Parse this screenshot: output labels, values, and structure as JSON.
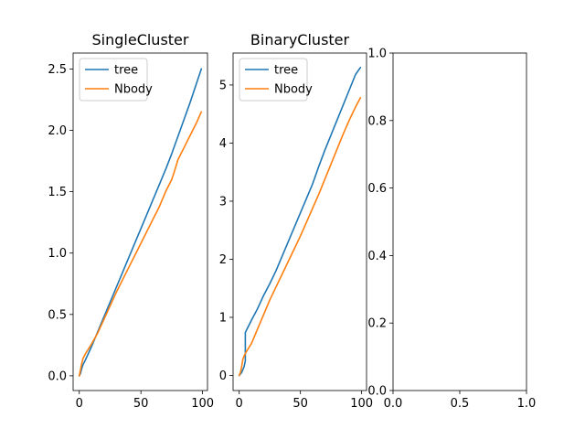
{
  "chart_data": [
    {
      "type": "line",
      "title": "SingleCluster",
      "xlabel": "",
      "ylabel": "",
      "xlim": [
        -5,
        104
      ],
      "ylim": [
        -0.12,
        2.63
      ],
      "xticks": [
        0,
        50,
        100
      ],
      "xtick_labels": [
        "0",
        "50",
        "100"
      ],
      "yticks": [
        0,
        0.5,
        1,
        1.5,
        2,
        2.5
      ],
      "ytick_labels": [
        "0.0",
        "0.5",
        "1.0",
        "1.5",
        "2.0",
        "2.5"
      ],
      "legend": "upper-left",
      "grid": false,
      "series": [
        {
          "name": "tree",
          "color": "#1f77b4",
          "x": [
            0,
            1,
            2,
            3,
            5,
            10,
            15,
            20,
            25,
            30,
            35,
            40,
            45,
            50,
            55,
            60,
            65,
            70,
            75,
            80,
            85,
            90,
            95,
            99
          ],
          "y": [
            0.0,
            0.02,
            0.06,
            0.09,
            0.13,
            0.24,
            0.36,
            0.48,
            0.6,
            0.72,
            0.84,
            0.96,
            1.08,
            1.2,
            1.32,
            1.44,
            1.56,
            1.68,
            1.81,
            1.95,
            2.09,
            2.23,
            2.38,
            2.5
          ]
        },
        {
          "name": "Nbody",
          "color": "#ff7f0e",
          "x": [
            0,
            1,
            2,
            3,
            5,
            10,
            15,
            20,
            25,
            30,
            35,
            40,
            45,
            50,
            55,
            60,
            65,
            70,
            75,
            77,
            80,
            85,
            90,
            95,
            99
          ],
          "y": [
            0.0,
            0.05,
            0.1,
            0.14,
            0.18,
            0.26,
            0.35,
            0.46,
            0.57,
            0.68,
            0.78,
            0.88,
            0.98,
            1.08,
            1.18,
            1.28,
            1.38,
            1.5,
            1.6,
            1.66,
            1.76,
            1.86,
            1.96,
            2.06,
            2.15
          ]
        }
      ]
    },
    {
      "type": "line",
      "title": "BinaryCluster",
      "xlabel": "",
      "ylabel": "",
      "xlim": [
        -5,
        104
      ],
      "ylim": [
        -0.26,
        5.55
      ],
      "xticks": [
        0,
        50,
        100
      ],
      "xtick_labels": [
        "0",
        "50",
        "100"
      ],
      "yticks": [
        0,
        1,
        2,
        3,
        4,
        5
      ],
      "ytick_labels": [
        "0",
        "1",
        "2",
        "3",
        "4",
        "5"
      ],
      "legend": "upper-left",
      "grid": false,
      "series": [
        {
          "name": "tree",
          "color": "#1f77b4",
          "x": [
            0,
            2,
            4,
            5,
            5,
            10,
            15,
            20,
            25,
            30,
            35,
            40,
            45,
            50,
            55,
            60,
            65,
            70,
            75,
            80,
            85,
            90,
            95,
            99
          ],
          "y": [
            0.0,
            0.05,
            0.15,
            0.25,
            0.74,
            0.95,
            1.15,
            1.38,
            1.58,
            1.8,
            2.05,
            2.3,
            2.55,
            2.8,
            3.05,
            3.3,
            3.6,
            3.88,
            4.14,
            4.4,
            4.66,
            4.92,
            5.18,
            5.3
          ]
        },
        {
          "name": "Nbody",
          "color": "#ff7f0e",
          "x": [
            0,
            1,
            2,
            3,
            5,
            10,
            15,
            20,
            25,
            30,
            35,
            40,
            45,
            50,
            55,
            60,
            65,
            70,
            75,
            80,
            85,
            90,
            95,
            99
          ],
          "y": [
            0.0,
            0.05,
            0.15,
            0.28,
            0.38,
            0.55,
            0.8,
            1.05,
            1.3,
            1.52,
            1.74,
            1.96,
            2.18,
            2.4,
            2.64,
            2.88,
            3.12,
            3.38,
            3.64,
            3.9,
            4.16,
            4.4,
            4.62,
            4.78
          ]
        }
      ]
    },
    {
      "type": "line",
      "title": "",
      "xlabel": "",
      "ylabel": "",
      "xlim": [
        0,
        1
      ],
      "ylim": [
        0,
        1
      ],
      "xticks": [
        0,
        0.5,
        1
      ],
      "xtick_labels": [
        "0.0",
        "0.5",
        "1.0"
      ],
      "yticks": [
        0,
        0.2,
        0.4,
        0.6,
        0.8,
        1
      ],
      "ytick_labels": [
        "0.0",
        "0.2",
        "0.4",
        "0.6",
        "0.8",
        "1.0"
      ],
      "legend": "none",
      "grid": false,
      "series": []
    }
  ]
}
